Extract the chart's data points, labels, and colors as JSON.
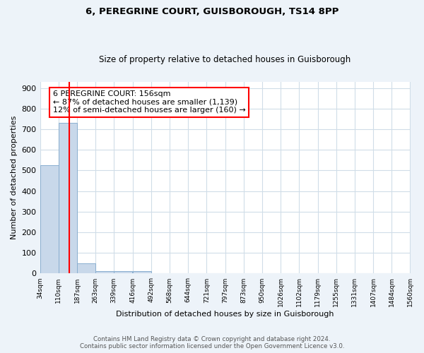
{
  "title1": "6, PEREGRINE COURT, GUISBOROUGH, TS14 8PP",
  "title2": "Size of property relative to detached houses in Guisborough",
  "xlabel": "Distribution of detached houses by size in Guisborough",
  "ylabel": "Number of detached properties",
  "bin_edges": [
    34,
    110,
    187,
    263,
    339,
    416,
    492,
    568,
    644,
    721,
    797,
    873,
    950,
    1026,
    1102,
    1179,
    1255,
    1331,
    1407,
    1484,
    1560
  ],
  "bar_heights": [
    525,
    730,
    48,
    12,
    12,
    12,
    0,
    0,
    0,
    0,
    0,
    0,
    0,
    0,
    0,
    0,
    0,
    0,
    0,
    0
  ],
  "bar_color": "#c8d8ea",
  "bar_edgecolor": "#8aafd0",
  "property_line_x": 156,
  "property_line_color": "red",
  "annotation_title": "6 PEREGRINE COURT: 156sqm",
  "annotation_line1": "← 87% of detached houses are smaller (1,139)",
  "annotation_line2": "12% of semi-detached houses are larger (160) →",
  "annotation_box_facecolor": "white",
  "annotation_box_edgecolor": "red",
  "yticks": [
    0,
    100,
    200,
    300,
    400,
    500,
    600,
    700,
    800,
    900
  ],
  "ylim": [
    0,
    930
  ],
  "xlim_left": 34,
  "xlim_right": 1560,
  "tick_labels": [
    "34sqm",
    "110sqm",
    "187sqm",
    "263sqm",
    "339sqm",
    "416sqm",
    "492sqm",
    "568sqm",
    "644sqm",
    "721sqm",
    "797sqm",
    "873sqm",
    "950sqm",
    "1026sqm",
    "1102sqm",
    "1179sqm",
    "1255sqm",
    "1331sqm",
    "1407sqm",
    "1484sqm",
    "1560sqm"
  ],
  "footer1": "Contains HM Land Registry data © Crown copyright and database right 2024.",
  "footer2": "Contains public sector information licensed under the Open Government Licence v3.0.",
  "plot_bg_color": "white",
  "fig_bg_color": "#edf3f9",
  "grid_color": "#d0dde8",
  "title1_fontsize": 9.5,
  "title2_fontsize": 8.5
}
